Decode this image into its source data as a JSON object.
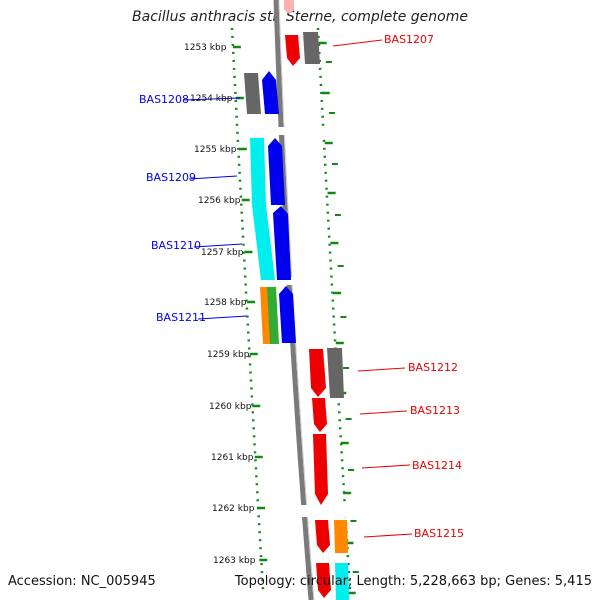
{
  "title": "Bacillus anthracis str. Sterne, complete genome",
  "footer": {
    "accession": "Accession: NC_005945",
    "summary": "Topology: circular; Length: 5,228,663 bp; Genes: 5,415"
  },
  "colors": {
    "forward": "#ee0000",
    "reverse": "#0000ee",
    "grey": "#666666",
    "cyan": "#00eeee",
    "orange": "#ff8800",
    "green": "#33aa33",
    "tick": "#118811",
    "backbone": "#777777"
  },
  "ticks": [
    "1253 kbp",
    "1254 kbp",
    "1255 kbp",
    "1256 kbp",
    "1257 kbp",
    "1258 kbp",
    "1259 kbp",
    "1260 kbp",
    "1261 kbp",
    "1262 kbp",
    "1263 kbp"
  ],
  "gene_labels": [
    {
      "name": "BAS1207",
      "strand": "forward"
    },
    {
      "name": "BAS1208",
      "strand": "reverse"
    },
    {
      "name": "BAS1209",
      "strand": "reverse"
    },
    {
      "name": "BAS1210",
      "strand": "reverse"
    },
    {
      "name": "BAS1211",
      "strand": "reverse"
    },
    {
      "name": "BAS1212",
      "strand": "forward"
    },
    {
      "name": "BAS1213",
      "strand": "forward"
    },
    {
      "name": "BAS1214",
      "strand": "forward"
    },
    {
      "name": "BAS1215",
      "strand": "forward"
    }
  ]
}
